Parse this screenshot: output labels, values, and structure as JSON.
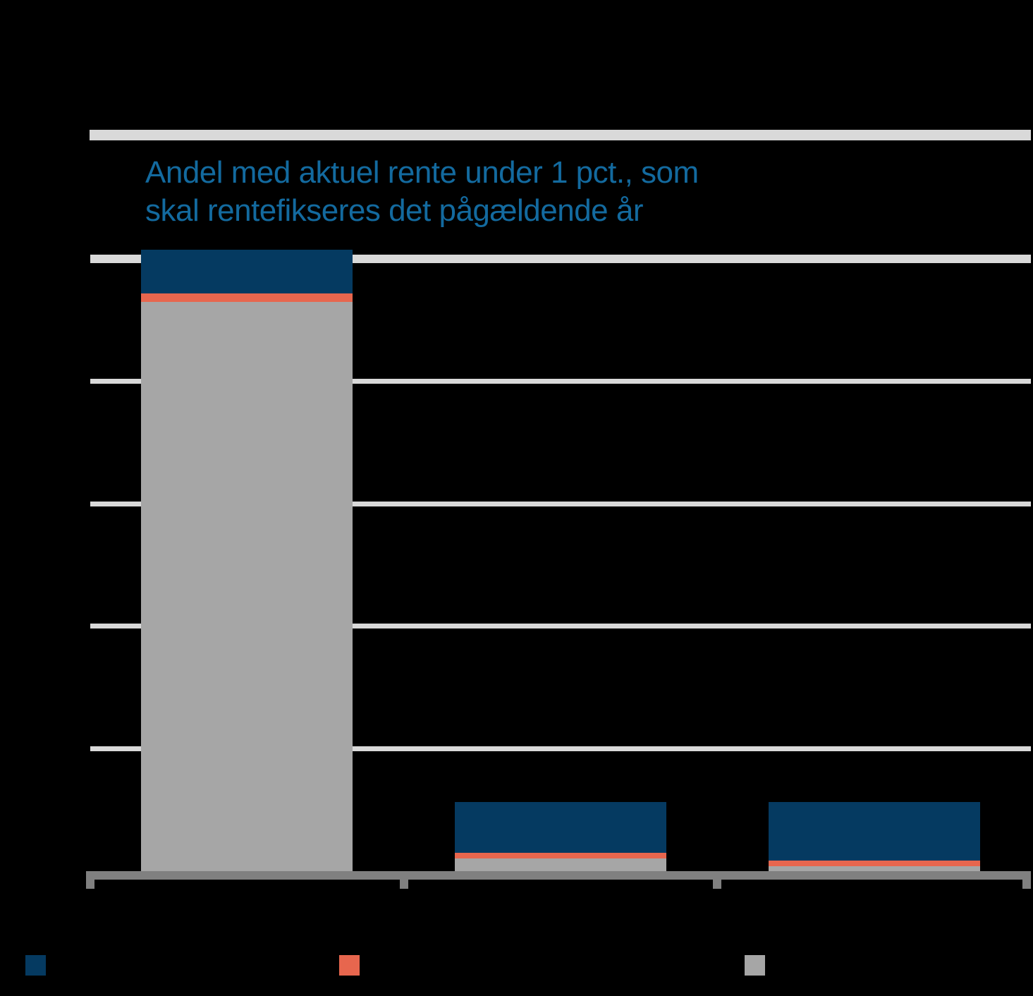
{
  "page": {
    "background": "#000000"
  },
  "annotation": {
    "line1": "Andel med aktuel rente under 1 pct., som",
    "line2": "skal rentefikseres det pågældende år",
    "color": "#136a9f"
  },
  "chart_data": {
    "type": "bar",
    "stacked": true,
    "orientation": "vertical",
    "title": "",
    "annotation": "Andel med aktuel rente under 1 pct., som skal rentefikseres det pågældende år",
    "categories": [
      "",
      "",
      ""
    ],
    "series": [
      {
        "name": "navy",
        "color": "#053a61",
        "values": [
          7.1,
          8.3,
          9.6
        ]
      },
      {
        "name": "orange",
        "color": "#e7664e",
        "values": [
          1.4,
          0.9,
          0.9
        ]
      },
      {
        "name": "gray",
        "color": "#a6a6a6",
        "values": [
          93.0,
          2.1,
          0.8
        ]
      }
    ],
    "stack_order_bottom_to_top": [
      "gray",
      "orange",
      "navy"
    ],
    "ylim": [
      0,
      120
    ],
    "gridline_levels": [
      20,
      40,
      60,
      80,
      100
    ],
    "gridline_color": "#d9d9d9",
    "axis_color": "#808080",
    "top_border_color": "#d9d9d9",
    "grid": true,
    "legend_position": "bottom",
    "axis_tick_labels_visible": false
  },
  "legend": {
    "items": [
      {
        "name": "navy",
        "color": "#053a61",
        "label": ""
      },
      {
        "name": "orange",
        "color": "#e7664e",
        "label": ""
      },
      {
        "name": "gray",
        "color": "#a6a6a6",
        "label": ""
      }
    ]
  }
}
